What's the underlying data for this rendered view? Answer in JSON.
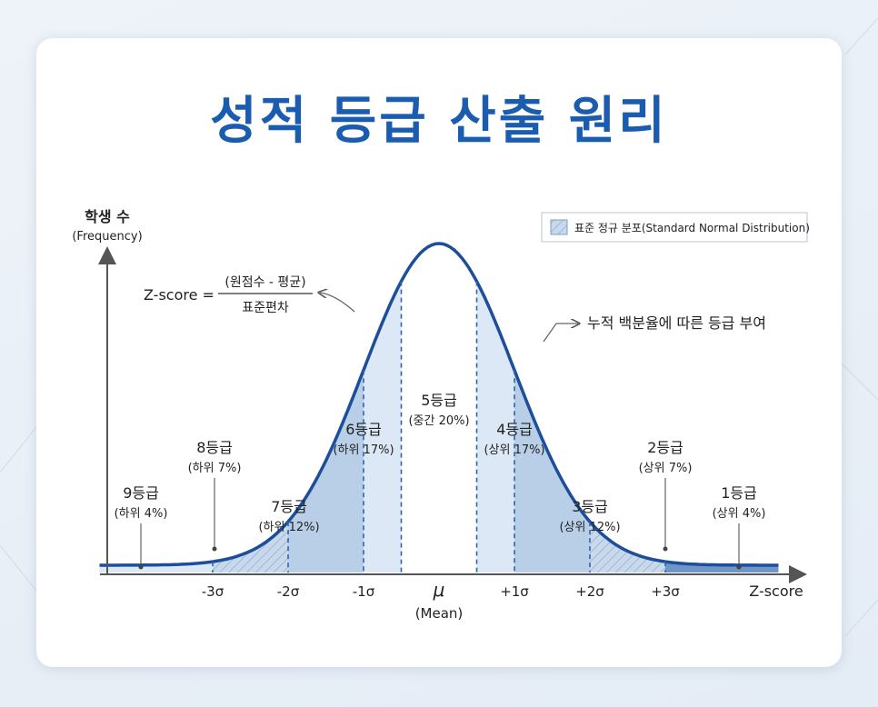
{
  "title": "성적 등급 산출 원리",
  "y_axis": {
    "label": "학생 수",
    "sublabel": "(Frequency)"
  },
  "x_axis": {
    "label": "Z-score"
  },
  "legend": {
    "label": "표준 정규 분포(Standard Normal Distribution)"
  },
  "formula": {
    "lhs": "Z-score =",
    "numerator": "(원점수 - 평균)",
    "denominator": "표준편차"
  },
  "annotation": "누적 백분율에 따른 등급 부여",
  "mean": {
    "symbol": "μ",
    "label": "(Mean)"
  },
  "chart_data": {
    "type": "area",
    "curve": "standard normal density",
    "x_ticks": [
      "-3σ",
      "-2σ",
      "-1σ",
      "μ",
      "+1σ",
      "+2σ",
      "+3σ"
    ],
    "grades": [
      {
        "name": "9등급",
        "note": "(하위 4%)",
        "percent": 4,
        "z_from": -3.5,
        "z_to": -2.75
      },
      {
        "name": "8등급",
        "note": "(하위 7%)",
        "percent": 7,
        "z_from": -3.0,
        "z_to": -2.0
      },
      {
        "name": "7등급",
        "note": "(하위 12%)",
        "percent": 12,
        "z_from": -2.0,
        "z_to": -1.0
      },
      {
        "name": "6등급",
        "note": "(하위 17%)",
        "percent": 17,
        "z_from": -1.0,
        "z_to": -0.35
      },
      {
        "name": "5등급",
        "note": "(중간 20%)",
        "percent": 20,
        "z_from": -0.35,
        "z_to": 0.35
      },
      {
        "name": "4등급",
        "note": "(상위 17%)",
        "percent": 17,
        "z_from": 0.35,
        "z_to": 1.0
      },
      {
        "name": "3등급",
        "note": "(상위 12%)",
        "percent": 12,
        "z_from": 1.0,
        "z_to": 2.0
      },
      {
        "name": "2등급",
        "note": "(상위 7%)",
        "percent": 7,
        "z_from": 2.0,
        "z_to": 3.0
      },
      {
        "name": "1등급",
        "note": "(상위 4%)",
        "percent": 4,
        "z_from": 3.0,
        "z_to": 3.5
      }
    ]
  },
  "colors": {
    "title": "#1a5cb0",
    "curve": "#1d4e9a",
    "fill_light": "#dce8f5",
    "fill_mid": "#b9cfe8",
    "fill_dark": "#6d95c8",
    "divider": "#2f63b0"
  }
}
